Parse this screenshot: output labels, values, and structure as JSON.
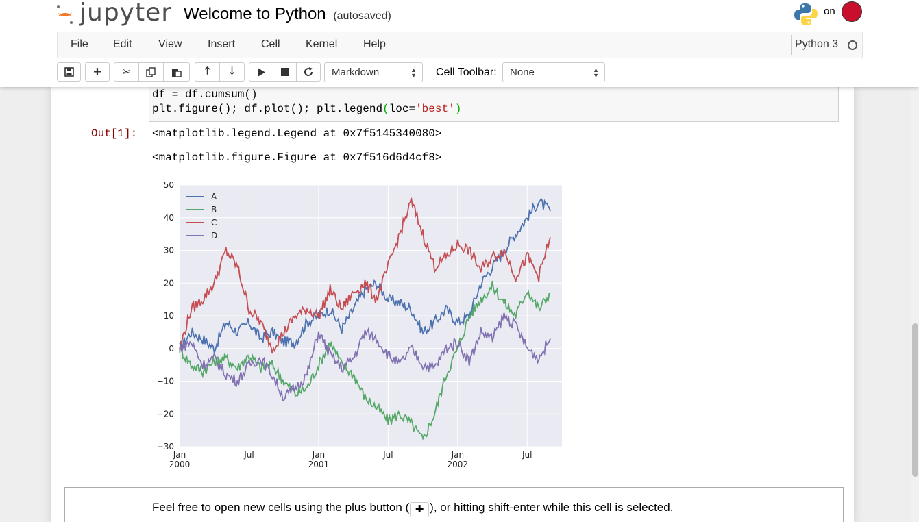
{
  "header": {
    "logo_text": "jupyter",
    "notebook_title": "Welcome to Python",
    "autosave_status": "(autosaved)",
    "trusted_text": "on"
  },
  "menu": {
    "items": [
      "File",
      "Edit",
      "View",
      "Insert",
      "Cell",
      "Kernel",
      "Help"
    ],
    "kernel_name": "Python 3"
  },
  "toolbar": {
    "cell_type": "Markdown",
    "cell_toolbar_label": "Cell Toolbar:",
    "cell_toolbar_value": "None"
  },
  "code_cell": {
    "line1": "df = df.cumsum()",
    "line2_a": "plt.figure(); df.plot(); plt.legend",
    "line2_paren_open": "(",
    "line2_b": "loc=",
    "line2_str": "'best'",
    "line2_paren_close": ")"
  },
  "output": {
    "prompt": "Out[1]:",
    "line1": "<matplotlib.legend.Legend at 0x7f5145340080>",
    "line2": "<matplotlib.figure.Figure at 0x7f516d6d4cf8>"
  },
  "chart_data": {
    "type": "line",
    "title": "",
    "xlabel": "",
    "ylabel": "",
    "ylim": [
      -30,
      50
    ],
    "yticks": [
      "50",
      "40",
      "30",
      "20",
      "10",
      "0",
      "−10",
      "−20",
      "−30"
    ],
    "x_ticks": [
      {
        "top": "Jan",
        "bottom": "2000",
        "month": 0
      },
      {
        "top": "Jul",
        "bottom": "",
        "month": 6
      },
      {
        "top": "Jan",
        "bottom": "2001",
        "month": 12
      },
      {
        "top": "Jul",
        "bottom": "",
        "month": 18
      },
      {
        "top": "Jan",
        "bottom": "2002",
        "month": 24
      },
      {
        "top": "Jul",
        "bottom": "",
        "month": 30
      }
    ],
    "x_months": [
      0,
      1,
      2,
      3,
      4,
      5,
      6,
      7,
      8,
      9,
      10,
      11,
      12,
      13,
      14,
      15,
      16,
      17,
      18,
      19,
      20,
      21,
      22,
      23,
      24,
      25,
      26,
      27,
      28,
      29,
      30,
      31,
      32
    ],
    "legend_position": "upper-left",
    "grid": true,
    "series": [
      {
        "name": "A",
        "color": "#4c72b0",
        "values": [
          0,
          5,
          3,
          0,
          8,
          5,
          8,
          3,
          5,
          2,
          2,
          8,
          10,
          12,
          6,
          12,
          18,
          20,
          15,
          14,
          12,
          5,
          8,
          12,
          8,
          10,
          20,
          25,
          30,
          35,
          40,
          45,
          42
        ]
      },
      {
        "name": "B",
        "color": "#55a868",
        "values": [
          0,
          -5,
          -7,
          -4,
          -3,
          -6,
          -2,
          -6,
          -5,
          -10,
          -14,
          -12,
          -5,
          2,
          -5,
          -8,
          -15,
          -18,
          -22,
          -20,
          -23,
          -28,
          -20,
          -8,
          0,
          10,
          15,
          19,
          14,
          10,
          18,
          12,
          17
        ]
      },
      {
        "name": "C",
        "color": "#c44e52",
        "values": [
          0,
          12,
          15,
          20,
          30,
          25,
          12,
          8,
          0,
          5,
          10,
          12,
          10,
          18,
          12,
          17,
          20,
          15,
          25,
          35,
          45,
          35,
          25,
          28,
          32,
          30,
          24,
          28,
          30,
          22,
          28,
          22,
          34
        ]
      },
      {
        "name": "D",
        "color": "#8172b2",
        "values": [
          0,
          2,
          -5,
          -3,
          -8,
          -10,
          -5,
          -3,
          -8,
          -15,
          -12,
          -8,
          5,
          -2,
          -6,
          -3,
          5,
          3,
          -2,
          -5,
          0,
          -5,
          -6,
          0,
          2,
          -4,
          5,
          3,
          10,
          7,
          0,
          -3,
          3
        ]
      }
    ]
  },
  "markdown_cell": {
    "text_before": "Feel free to open new cells using the plus button (",
    "text_after": "), or hitting shift-enter while this cell is selected."
  }
}
